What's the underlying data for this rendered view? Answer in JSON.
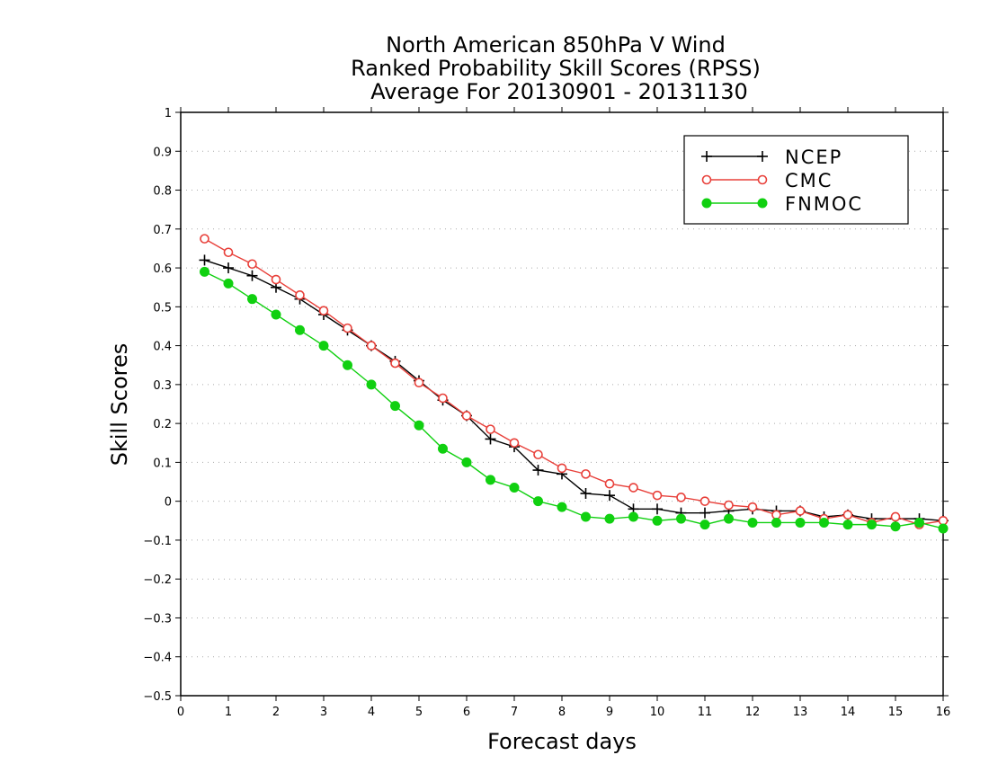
{
  "chart_data": {
    "type": "line",
    "title_lines": [
      "North American 850hPa V Wind",
      "Ranked Probability Skill Scores (RPSS)",
      "Average For 20130901 - 20131130"
    ],
    "xlabel": "Forecast days",
    "ylabel": "Skill Scores",
    "xlim": [
      0,
      16
    ],
    "ylim": [
      -0.5,
      1
    ],
    "x_ticks": [
      "0",
      "1",
      "2",
      "3",
      "4",
      "5",
      "6",
      "7",
      "8",
      "9",
      "10",
      "11",
      "12",
      "13",
      "14",
      "15",
      "16"
    ],
    "y_ticks": [
      "−0.5",
      "−0.4",
      "−0.3",
      "−0.2",
      "−0.1",
      "0",
      "0.1",
      "0.2",
      "0.3",
      "0.4",
      "0.5",
      "0.6",
      "0.7",
      "0.8",
      "0.9",
      "1"
    ],
    "grid": true,
    "legend_position": "top-right",
    "x": [
      0.5,
      1,
      1.5,
      2,
      2.5,
      3,
      3.5,
      4,
      4.5,
      5,
      5.5,
      6,
      6.5,
      7,
      7.5,
      8,
      8.5,
      9,
      9.5,
      10,
      10.5,
      11,
      11.5,
      12,
      12.5,
      13,
      13.5,
      14,
      14.5,
      15,
      15.5,
      16
    ],
    "series": [
      {
        "name": "NCEP",
        "color": "#000000",
        "marker": "plus",
        "values": [
          0.62,
          0.6,
          0.58,
          0.55,
          0.52,
          0.48,
          0.44,
          0.4,
          0.36,
          0.31,
          0.26,
          0.22,
          0.16,
          0.14,
          0.08,
          0.07,
          0.02,
          0.015,
          -0.02,
          -0.02,
          -0.03,
          -0.03,
          -0.025,
          -0.02,
          -0.025,
          -0.025,
          -0.04,
          -0.035,
          -0.045,
          -0.045,
          -0.045,
          -0.05
        ]
      },
      {
        "name": "CMC",
        "color": "#e8403a",
        "marker": "open-circle",
        "values": [
          0.675,
          0.64,
          0.61,
          0.57,
          0.53,
          0.49,
          0.445,
          0.4,
          0.355,
          0.305,
          0.265,
          0.22,
          0.185,
          0.15,
          0.12,
          0.085,
          0.07,
          0.045,
          0.035,
          0.015,
          0.01,
          0.0,
          -0.01,
          -0.015,
          -0.035,
          -0.025,
          -0.045,
          -0.035,
          -0.055,
          -0.04,
          -0.06,
          -0.05
        ]
      },
      {
        "name": "FNMOC",
        "color": "#10d010",
        "marker": "filled-circle",
        "values": [
          0.59,
          0.56,
          0.52,
          0.48,
          0.44,
          0.4,
          0.35,
          0.3,
          0.245,
          0.195,
          0.135,
          0.1,
          0.055,
          0.035,
          0.0,
          -0.015,
          -0.04,
          -0.045,
          -0.04,
          -0.05,
          -0.045,
          -0.06,
          -0.045,
          -0.055,
          -0.055,
          -0.055,
          -0.055,
          -0.06,
          -0.06,
          -0.065,
          -0.055,
          -0.07
        ]
      }
    ]
  }
}
